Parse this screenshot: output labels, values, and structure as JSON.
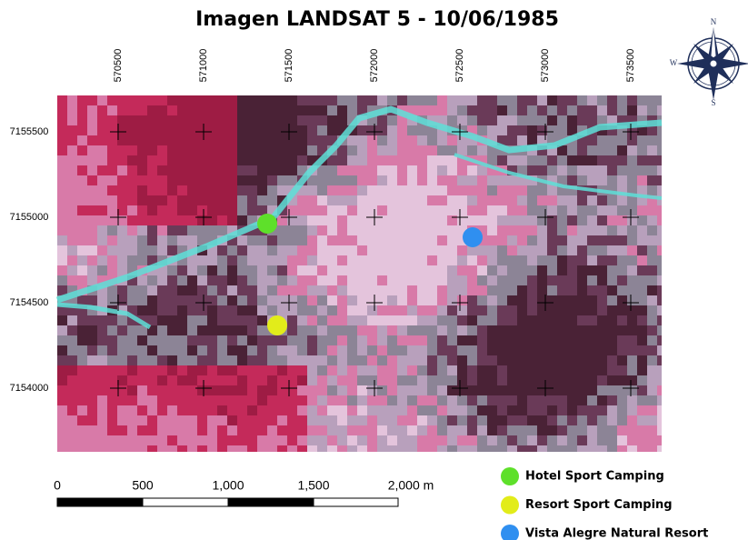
{
  "title": "Imagen LANDSAT 5 - 10/06/1985",
  "grid": {
    "x_labels": [
      570500,
      571000,
      571500,
      572000,
      572500,
      573000,
      573500
    ],
    "y_labels": [
      7155500,
      7155000,
      7154500,
      7154000
    ]
  },
  "scale_bar": {
    "labels": [
      "0",
      "500",
      "1,000",
      "1,500",
      "2,000 m"
    ]
  },
  "compass": {
    "north": "N",
    "west": "W",
    "south": "S"
  },
  "legend": [
    {
      "label": "Hotel Sport Camping",
      "color": "#5ee02a"
    },
    {
      "label": "Resort Sport Camping",
      "color": "#e2ec1a"
    },
    {
      "label": "Vista Alegre Natural Resort",
      "color": "#2f8ff0"
    }
  ]
}
